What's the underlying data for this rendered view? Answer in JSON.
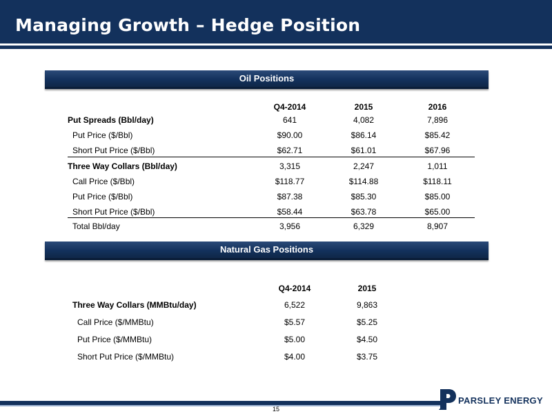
{
  "title": "Managing Growth – Hedge Position",
  "oil": {
    "section_title": "Oil Positions",
    "headers": [
      "Q4-2014",
      "2015",
      "2016"
    ],
    "rows": [
      {
        "label": "Put Spreads (Bbl/day)",
        "values": [
          "641",
          "4,082",
          "7,896"
        ]
      },
      {
        "label": "Put Price ($/Bbl)",
        "values": [
          "$90.00",
          "$86.14",
          "$85.42"
        ]
      },
      {
        "label": "Short Put Price ($/Bbl)",
        "values": [
          "$62.71",
          "$61.01",
          "$67.96"
        ]
      },
      {
        "label": "Three Way Collars (Bbl/day)",
        "values": [
          "3,315",
          "2,247",
          "1,011"
        ]
      },
      {
        "label": "Call Price ($/Bbl)",
        "values": [
          "$118.77",
          "$114.88",
          "$118.11"
        ]
      },
      {
        "label": "Put Price ($/Bbl)",
        "values": [
          "$87.38",
          "$85.30",
          "$85.00"
        ]
      },
      {
        "label": "Short Put Price ($/Bbl)",
        "values": [
          "$58.44",
          "$63.78",
          "$65.00"
        ]
      },
      {
        "label": "Total Bbl/day",
        "values": [
          "3,956",
          "6,329",
          "8,907"
        ]
      }
    ]
  },
  "gas": {
    "section_title": "Natural Gas Positions",
    "headers": [
      "Q4-2014",
      "2015"
    ],
    "rows": [
      {
        "label": "Three Way Collars (MMBtu/day)",
        "values": [
          "6,522",
          "9,863"
        ]
      },
      {
        "label": "Call Price ($/MMBtu)",
        "values": [
          "$5.57",
          "$5.25"
        ]
      },
      {
        "label": "Put Price ($/MMBtu)",
        "values": [
          "$5.00",
          "$4.50"
        ]
      },
      {
        "label": "Short Put Price ($/MMBtu)",
        "values": [
          "$4.00",
          "$3.75"
        ]
      }
    ]
  },
  "footer": {
    "page_number": "15",
    "brand": "PARSLEY ENERGY"
  },
  "colors": {
    "navy": "#13315c",
    "light_blue": "#9fb4d3"
  }
}
